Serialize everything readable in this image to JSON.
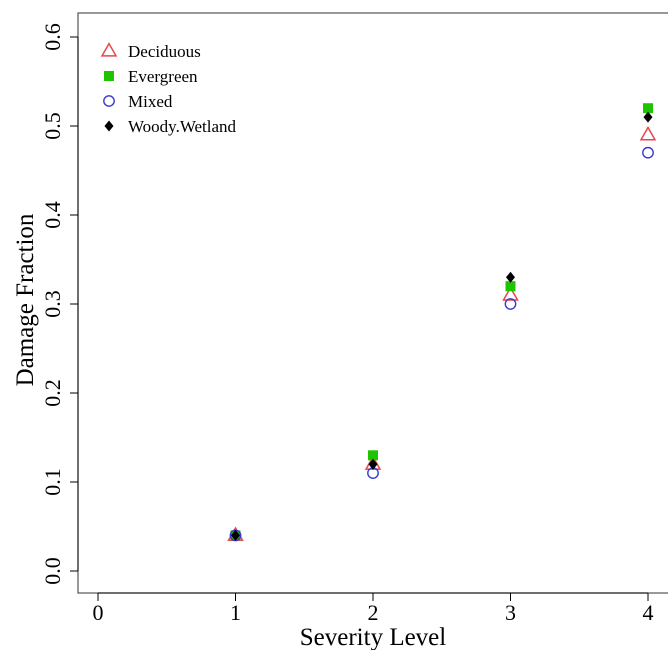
{
  "chart_data": {
    "type": "scatter",
    "title": "",
    "xlabel": "Severity Level",
    "ylabel": "Damage Fraction",
    "xlim": [
      -0.15,
      4.25
    ],
    "ylim": [
      -0.025,
      0.625
    ],
    "x_ticks": [
      "0",
      "1",
      "2",
      "3",
      "4"
    ],
    "y_ticks": [
      "0.0",
      "0.1",
      "0.2",
      "0.3",
      "0.4",
      "0.5",
      "0.6"
    ],
    "grid": false,
    "legend_position": "top-left",
    "series": [
      {
        "name": "Deciduous",
        "marker": "triangle-open",
        "color": "#e8474d",
        "x": [
          1,
          2,
          3,
          4
        ],
        "y": [
          0.04,
          0.12,
          0.31,
          0.49
        ]
      },
      {
        "name": "Evergreen",
        "marker": "square-filled",
        "color": "#1fc400",
        "x": [
          1,
          2,
          3,
          4
        ],
        "y": [
          0.04,
          0.13,
          0.32,
          0.52
        ]
      },
      {
        "name": "Mixed",
        "marker": "circle-open",
        "color": "#3a3ad0",
        "x": [
          1,
          2,
          3,
          4
        ],
        "y": [
          0.04,
          0.11,
          0.3,
          0.47
        ]
      },
      {
        "name": "Woody.Wetland",
        "marker": "diamond-filled",
        "color": "#000000",
        "x": [
          1,
          2,
          3,
          4
        ],
        "y": [
          0.04,
          0.12,
          0.33,
          0.51
        ]
      }
    ]
  }
}
